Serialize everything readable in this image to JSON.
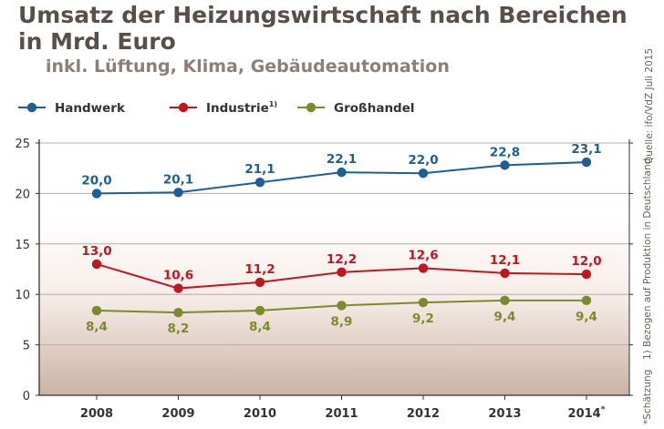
{
  "header": {
    "title": "Umsatz der Heizungswirtschaft nach Bereichen in Mrd. Euro",
    "subtitle": "inkl. Lüftung, Klima, Gebäudeautomation"
  },
  "notes": {
    "source": "Quelle: ifo/VdZ Juli 2015",
    "footnote1": "1) Bezogen auf Produktion in Deutschland",
    "footnote_star": "*Schätzung"
  },
  "colors": {
    "handwerk": "#1f5f96",
    "industrie": "#c0161f",
    "grosshandel": "#7a8c2a"
  },
  "chart_data": {
    "type": "line",
    "title": "Umsatz der Heizungswirtschaft nach Bereichen in Mrd. Euro",
    "categories": [
      "2008",
      "2009",
      "2010",
      "2011",
      "2012",
      "2013",
      "2014"
    ],
    "category_marks": [
      "",
      "",
      "",
      "",
      "",
      "",
      "*"
    ],
    "ylim": [
      0,
      25
    ],
    "yticks": [
      0,
      5,
      10,
      15,
      20,
      25
    ],
    "legend_position": "top-left",
    "series": [
      {
        "name": "Handwerk",
        "superscript": "",
        "color": "#1f5f96",
        "label_position": "above",
        "values": [
          20.0,
          20.1,
          21.1,
          22.1,
          22.0,
          22.8,
          23.1
        ],
        "labels": [
          "20,0",
          "20,1",
          "21,1",
          "22,1",
          "22,0",
          "22,8",
          "23,1"
        ]
      },
      {
        "name": "Industrie",
        "superscript": "1)",
        "color": "#c0161f",
        "label_position": "above",
        "values": [
          13.0,
          10.6,
          11.2,
          12.2,
          12.6,
          12.1,
          12.0
        ],
        "labels": [
          "13,0",
          "10,6",
          "11,2",
          "12,2",
          "12,6",
          "12,1",
          "12,0"
        ]
      },
      {
        "name": "Großhandel",
        "superscript": "",
        "color": "#7a8c2a",
        "label_position": "below",
        "values": [
          8.4,
          8.2,
          8.4,
          8.9,
          9.2,
          9.4,
          9.4
        ],
        "labels": [
          "8,4",
          "8,2",
          "8,4",
          "8,9",
          "9,2",
          "9,4",
          "9,4"
        ]
      }
    ]
  }
}
